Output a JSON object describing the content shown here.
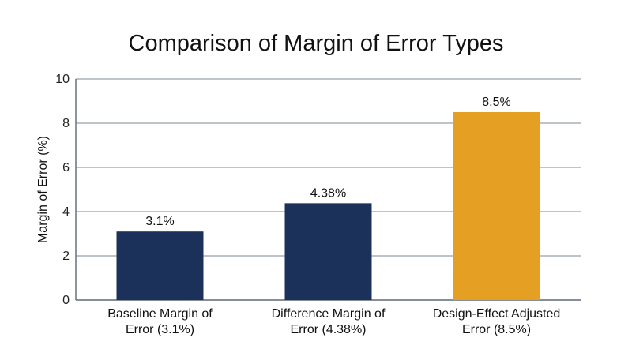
{
  "chart_data": {
    "type": "bar",
    "title": "Comparison of Margin of Error Types",
    "xlabel": "",
    "ylabel": "Margin of Error (%)",
    "ylim": [
      0,
      10
    ],
    "yticks": [
      0,
      2,
      4,
      6,
      8,
      10
    ],
    "grid": true,
    "legend": "none",
    "categories": [
      [
        "Baseline Margin of",
        "Error (3.1%)"
      ],
      [
        "Difference Margin of",
        "Error (4.38%)"
      ],
      [
        "Design-Effect Adjusted",
        "Error (8.5%)"
      ]
    ],
    "values": [
      3.1,
      4.38,
      8.5
    ],
    "data_labels": [
      "3.1%",
      "4.38%",
      "8.5%"
    ],
    "colors": [
      "#1b3159",
      "#1b3159",
      "#e5a023"
    ],
    "grid_color": "#7f8898",
    "axis_color": "#5f6878"
  }
}
